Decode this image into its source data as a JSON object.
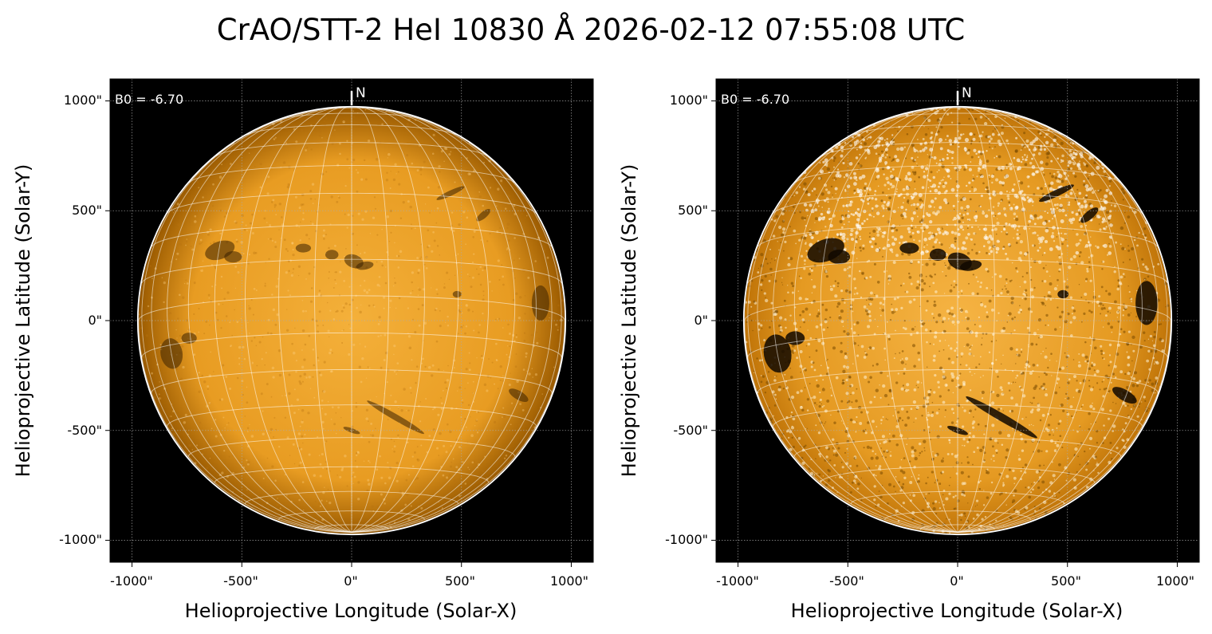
{
  "title": "CrAO/STT-2 HeI 10830 Å 2026-02-12 07:55:08 UTC",
  "colors": {
    "disk_light": "#f4b03a",
    "disk_mid": "#d8870e",
    "disk_dark": "#9a5a00",
    "background": "#000000",
    "grid": "#ffffff"
  },
  "panels": [
    {
      "id": "left",
      "variant": "standard-contrast",
      "xlabel": "Helioprojective Longitude (Solar-X)",
      "ylabel": "Helioprojective Latitude (Solar-Y)",
      "x_ticks": [
        "-1000\"",
        "-500\"",
        "0\"",
        "500\"",
        "1000\""
      ],
      "y_ticks": [
        "1000\"",
        "500\"",
        "0\"",
        "-500\"",
        "-1000\""
      ],
      "b0_label": "B0 = -6.70",
      "north_label": "N"
    },
    {
      "id": "right",
      "variant": "enhanced-contrast",
      "xlabel": "Helioprojective Longitude (Solar-X)",
      "ylabel": "Helioprojective Latitude (Solar-Y)",
      "x_ticks": [
        "-1000\"",
        "-500\"",
        "0\"",
        "500\"",
        "1000\""
      ],
      "y_ticks": [
        "1000\"",
        "500\"",
        "0\"",
        "-500\"",
        "-1000\""
      ],
      "b0_label": "B0 = -6.70",
      "north_label": "N"
    }
  ],
  "axes": {
    "xlim": [
      -1100,
      1100
    ],
    "ylim": [
      -1100,
      1100
    ],
    "solar_radius_arcsec": 970,
    "b0_deg": -6.7,
    "grid_step_deg": 10
  }
}
